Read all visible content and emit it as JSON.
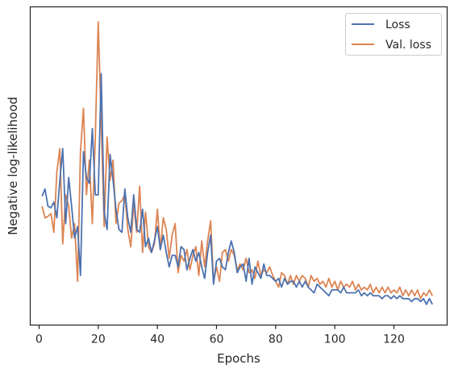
{
  "chart_data": {
    "type": "line",
    "xlabel": "Epochs",
    "ylabel": "Negative log-likelihood",
    "xlim": [
      -3,
      138
    ],
    "ylim": [
      0,
      1
    ],
    "x_ticks": [
      0,
      20,
      40,
      60,
      80,
      100,
      120
    ],
    "y_ticks_shown": false,
    "grid": false,
    "legend_position": "top-right",
    "colors": {
      "Loss": "#4c72b0",
      "Val. loss": "#dd8452"
    },
    "series": [
      {
        "name": "Loss",
        "x": [
          1,
          2,
          3,
          4,
          5,
          6,
          7,
          8,
          9,
          10,
          11,
          12,
          13,
          14,
          15,
          16,
          17,
          18,
          19,
          20,
          21,
          22,
          23,
          24,
          25,
          26,
          27,
          28,
          29,
          30,
          31,
          32,
          33,
          34,
          35,
          36,
          37,
          38,
          39,
          40,
          41,
          42,
          43,
          44,
          45,
          46,
          47,
          48,
          49,
          50,
          51,
          52,
          53,
          54,
          55,
          56,
          57,
          58,
          59,
          60,
          61,
          62,
          63,
          64,
          65,
          66,
          67,
          68,
          69,
          70,
          71,
          72,
          73,
          74,
          75,
          76,
          77,
          78,
          79,
          80,
          81,
          82,
          83,
          84,
          85,
          86,
          87,
          88,
          89,
          90,
          91,
          92,
          93,
          94,
          95,
          96,
          97,
          98,
          99,
          100,
          101,
          102,
          103,
          104,
          105,
          106,
          107,
          108,
          109,
          110,
          111,
          112,
          113,
          114,
          115,
          116,
          117,
          118,
          119,
          120,
          121,
          122,
          123,
          124,
          125,
          126,
          127,
          128,
          129,
          130,
          131,
          132,
          133
        ],
        "y": [
          0.395,
          0.42,
          0.36,
          0.355,
          0.375,
          0.32,
          0.45,
          0.56,
          0.3,
          0.46,
          0.36,
          0.25,
          0.29,
          0.12,
          0.55,
          0.46,
          0.44,
          0.63,
          0.4,
          0.4,
          0.82,
          0.34,
          0.28,
          0.54,
          0.45,
          0.35,
          0.28,
          0.27,
          0.42,
          0.32,
          0.27,
          0.4,
          0.28,
          0.27,
          0.35,
          0.22,
          0.25,
          0.2,
          0.24,
          0.29,
          0.21,
          0.26,
          0.2,
          0.15,
          0.19,
          0.19,
          0.15,
          0.22,
          0.21,
          0.14,
          0.18,
          0.21,
          0.17,
          0.2,
          0.15,
          0.11,
          0.2,
          0.26,
          0.09,
          0.17,
          0.18,
          0.15,
          0.14,
          0.2,
          0.24,
          0.2,
          0.13,
          0.15,
          0.16,
          0.1,
          0.18,
          0.09,
          0.15,
          0.13,
          0.11,
          0.16,
          0.12,
          0.12,
          0.11,
          0.1,
          0.11,
          0.08,
          0.11,
          0.09,
          0.1,
          0.1,
          0.08,
          0.1,
          0.08,
          0.1,
          0.08,
          0.07,
          0.06,
          0.09,
          0.08,
          0.07,
          0.06,
          0.05,
          0.07,
          0.07,
          0.07,
          0.06,
          0.08,
          0.06,
          0.06,
          0.06,
          0.06,
          0.07,
          0.05,
          0.06,
          0.05,
          0.06,
          0.05,
          0.05,
          0.05,
          0.04,
          0.05,
          0.05,
          0.04,
          0.05,
          0.04,
          0.05,
          0.04,
          0.04,
          0.04,
          0.03,
          0.04,
          0.04,
          0.03,
          0.04,
          0.02,
          0.04,
          0.02
        ]
      },
      {
        "name": "Val. loss",
        "x": [
          1,
          2,
          3,
          4,
          5,
          6,
          7,
          8,
          9,
          10,
          11,
          12,
          13,
          14,
          15,
          16,
          17,
          18,
          19,
          20,
          21,
          22,
          23,
          24,
          25,
          26,
          27,
          28,
          29,
          30,
          31,
          32,
          33,
          34,
          35,
          36,
          37,
          38,
          39,
          40,
          41,
          42,
          43,
          44,
          45,
          46,
          47,
          48,
          49,
          50,
          51,
          52,
          53,
          54,
          55,
          56,
          57,
          58,
          59,
          60,
          61,
          62,
          63,
          64,
          65,
          66,
          67,
          68,
          69,
          70,
          71,
          72,
          73,
          74,
          75,
          76,
          77,
          78,
          79,
          80,
          81,
          82,
          83,
          84,
          85,
          86,
          87,
          88,
          89,
          90,
          91,
          92,
          93,
          94,
          95,
          96,
          97,
          98,
          99,
          100,
          101,
          102,
          103,
          104,
          105,
          106,
          107,
          108,
          109,
          110,
          111,
          112,
          113,
          114,
          115,
          116,
          117,
          118,
          119,
          120,
          121,
          122,
          123,
          124,
          125,
          126,
          127,
          128,
          129,
          130,
          131,
          132,
          133
        ],
        "y": [
          0.36,
          0.32,
          0.325,
          0.335,
          0.27,
          0.48,
          0.56,
          0.23,
          0.4,
          0.36,
          0.25,
          0.3,
          0.1,
          0.55,
          0.7,
          0.4,
          0.52,
          0.3,
          0.6,
          1.0,
          0.65,
          0.29,
          0.6,
          0.45,
          0.52,
          0.3,
          0.37,
          0.38,
          0.4,
          0.28,
          0.22,
          0.37,
          0.27,
          0.43,
          0.2,
          0.34,
          0.22,
          0.2,
          0.23,
          0.35,
          0.21,
          0.32,
          0.28,
          0.18,
          0.26,
          0.3,
          0.13,
          0.19,
          0.17,
          0.21,
          0.14,
          0.19,
          0.22,
          0.12,
          0.24,
          0.15,
          0.24,
          0.31,
          0.1,
          0.15,
          0.1,
          0.2,
          0.21,
          0.17,
          0.21,
          0.19,
          0.14,
          0.16,
          0.14,
          0.18,
          0.13,
          0.14,
          0.11,
          0.17,
          0.12,
          0.14,
          0.13,
          0.15,
          0.12,
          0.1,
          0.08,
          0.13,
          0.12,
          0.09,
          0.12,
          0.09,
          0.12,
          0.1,
          0.12,
          0.11,
          0.08,
          0.12,
          0.1,
          0.11,
          0.09,
          0.1,
          0.08,
          0.11,
          0.08,
          0.1,
          0.07,
          0.1,
          0.08,
          0.09,
          0.08,
          0.1,
          0.07,
          0.09,
          0.07,
          0.08,
          0.07,
          0.09,
          0.06,
          0.08,
          0.06,
          0.08,
          0.06,
          0.08,
          0.06,
          0.07,
          0.06,
          0.08,
          0.05,
          0.07,
          0.05,
          0.07,
          0.05,
          0.07,
          0.04,
          0.06,
          0.05,
          0.07,
          0.05
        ]
      }
    ]
  }
}
